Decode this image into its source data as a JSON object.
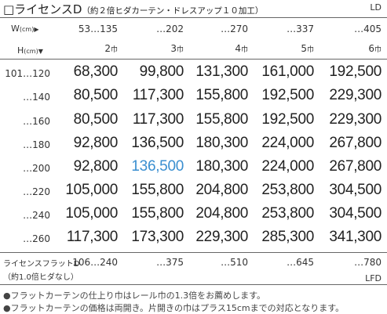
{
  "title": {
    "main": "□ライセンスD",
    "sub": "（約２倍ヒダカーテン・ドレスアップ１０加工）",
    "code": "LD"
  },
  "header": {
    "width_label": "W",
    "width_unit": "(cm)",
    "width_arrow": "▶",
    "height_label": "H",
    "height_unit": "(cm)",
    "height_arrow": "▼",
    "width_ranges": [
      "53…135",
      "…202",
      "…270",
      "…337",
      "…405"
    ],
    "panel_counts": [
      "2",
      "3",
      "4",
      "5",
      "6"
    ],
    "panel_unit": "巾"
  },
  "rows": [
    {
      "h": "101…120",
      "prices": [
        "68,300",
        "99,800",
        "131,300",
        "161,000",
        "192,500"
      ]
    },
    {
      "h": "…140",
      "prices": [
        "80,500",
        "117,300",
        "155,800",
        "192,500",
        "229,300"
      ]
    },
    {
      "h": "…160",
      "prices": [
        "80,500",
        "117,300",
        "155,800",
        "192,500",
        "229,300"
      ]
    },
    {
      "h": "…180",
      "prices": [
        "92,800",
        "136,500",
        "180,300",
        "224,000",
        "267,800"
      ]
    },
    {
      "h": "…200",
      "prices": [
        "92,800",
        "136,500",
        "180,300",
        "224,000",
        "267,800"
      ]
    },
    {
      "h": "…220",
      "prices": [
        "105,000",
        "155,800",
        "204,800",
        "253,800",
        "304,500"
      ]
    },
    {
      "h": "…240",
      "prices": [
        "105,000",
        "155,800",
        "204,800",
        "253,800",
        "304,500"
      ]
    },
    {
      "h": "…260",
      "prices": [
        "117,300",
        "173,300",
        "229,300",
        "285,300",
        "341,300"
      ]
    }
  ],
  "highlight_color": "#3a8fd0",
  "flat": {
    "label": "ライセンスフラットD",
    "sub": "（約1.0倍ヒダなし）",
    "values": [
      "106…240",
      "…375",
      "…510",
      "…645",
      "…780"
    ],
    "code": "LFD"
  },
  "notes": [
    "●フラットカーテンの仕上り巾はレール巾の1.3倍をお薦めします。",
    "●フラットカーテンの価格は両開き。片開きの巾はプラス15cmまでの対応となります。"
  ]
}
